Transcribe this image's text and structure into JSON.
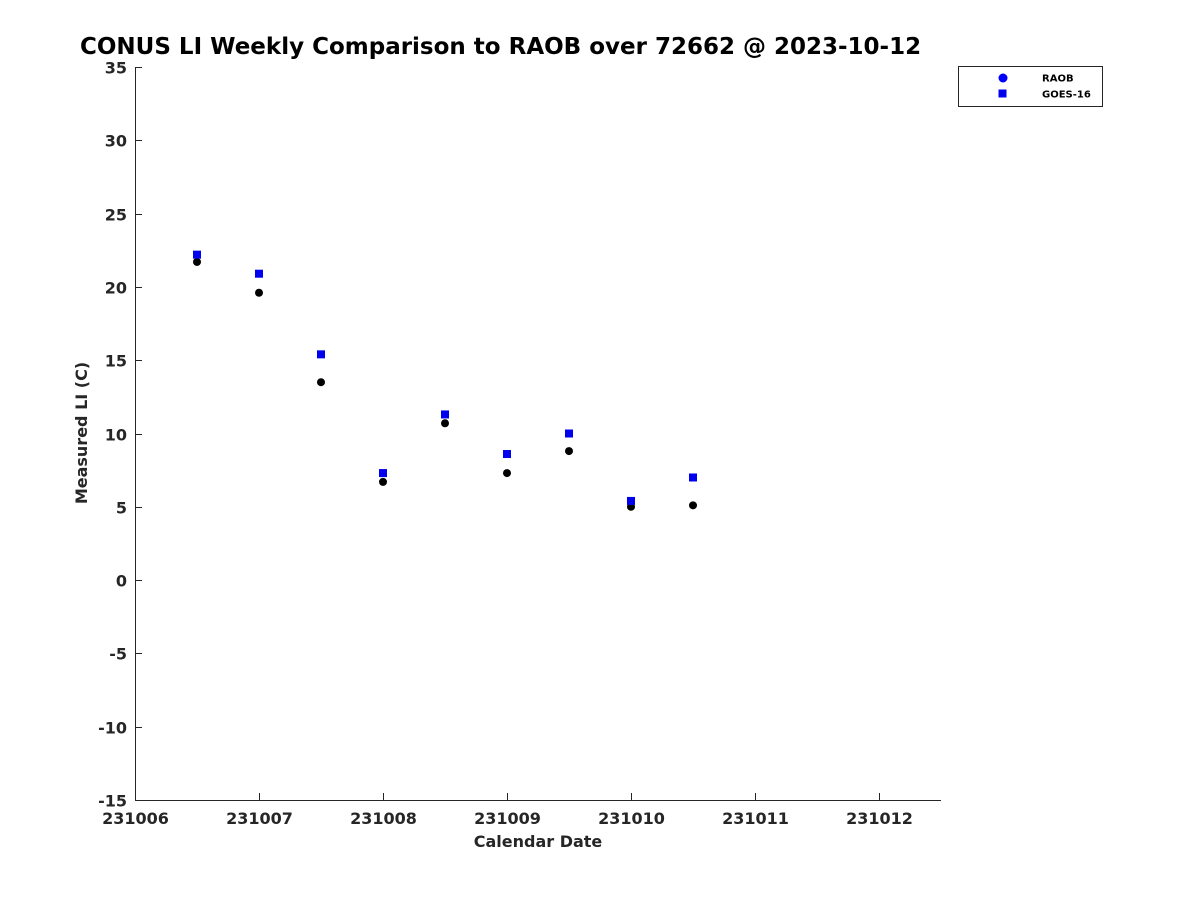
{
  "chart_data": {
    "type": "scatter",
    "title": "CONUS LI Weekly Comparison to RAOB over 72662 @ 2023-10-12",
    "xlabel": "Calendar Date",
    "ylabel": "Measured LI (C)",
    "xlim": [
      231006,
      231012.5
    ],
    "ylim": [
      -15,
      35
    ],
    "xticks": [
      231006,
      231007,
      231008,
      231009,
      231010,
      231011,
      231012
    ],
    "xtick_labels": [
      "231006",
      "231007",
      "231008",
      "231009",
      "231010",
      "231011",
      "231012"
    ],
    "yticks": [
      35,
      30,
      25,
      20,
      15,
      10,
      5,
      0,
      -5,
      -10,
      -15
    ],
    "ytick_labels": [
      "35",
      "30",
      "25",
      "20",
      "15",
      "10",
      "5",
      "0",
      "-5",
      "-10",
      "-15"
    ],
    "grid": false,
    "legend_position": "top-right",
    "series": [
      {
        "name": "RAOB",
        "marker": "circle",
        "color": "#000000",
        "legend_color": "#0000ff",
        "x": [
          231006.5,
          231007,
          231007.5,
          231008,
          231008.5,
          231009,
          231009.5,
          231010,
          231010.5
        ],
        "y": [
          21.7,
          19.6,
          13.5,
          6.7,
          10.7,
          7.3,
          8.8,
          5.0,
          5.1
        ]
      },
      {
        "name": "GOES-16",
        "marker": "square",
        "color": "#0000ee",
        "legend_color": "#0000ee",
        "x": [
          231006.5,
          231007,
          231007.5,
          231008,
          231008.5,
          231009,
          231009.5,
          231010,
          231010.5
        ],
        "y": [
          22.2,
          20.9,
          15.4,
          7.3,
          11.3,
          8.6,
          10.0,
          5.4,
          7.0
        ]
      }
    ]
  }
}
